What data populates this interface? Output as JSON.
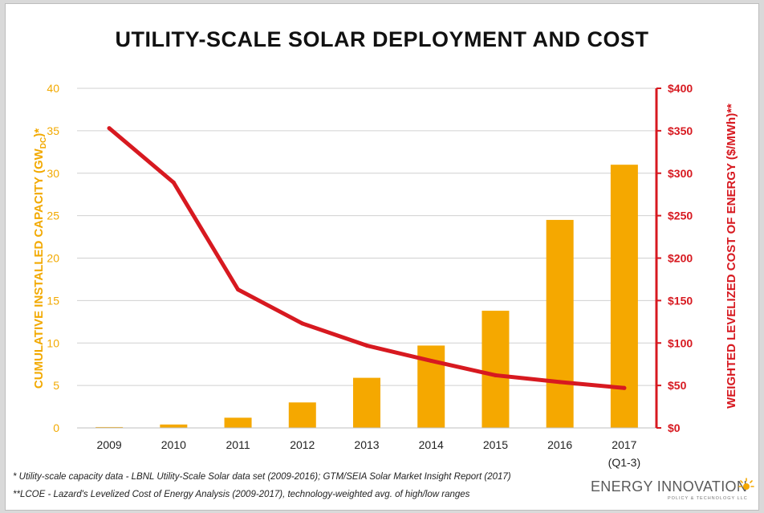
{
  "title": "UTILITY-SCALE SOLAR DEPLOYMENT AND COST",
  "chart_data": {
    "type": "bar",
    "title": "UTILITY-SCALE SOLAR DEPLOYMENT AND COST",
    "categories": [
      "2009",
      "2010",
      "2011",
      "2012",
      "2013",
      "2014",
      "2015",
      "2016",
      "2017"
    ],
    "category_sublabels": [
      "",
      "",
      "",
      "",
      "",
      "",
      "",
      "",
      "(Q1-3)"
    ],
    "series": [
      {
        "name": "Cumulative installed capacity",
        "type": "bar",
        "axis": "left",
        "color": "#f5a800",
        "values": [
          0.1,
          0.4,
          1.2,
          3.0,
          5.9,
          9.7,
          13.8,
          24.5,
          31.0
        ]
      },
      {
        "name": "Weighted levelized cost of energy",
        "type": "line",
        "axis": "right",
        "color": "#d71920",
        "values": [
          353,
          289,
          163,
          123,
          97,
          79,
          62,
          54,
          47
        ]
      }
    ],
    "ylabel_left": "CUMULATIVE INSTALLED CAPACITY (GW",
    "ylabel_left_sub": "DC",
    "ylabel_left_suffix": ")*",
    "ylabel_right": "WEIGHTED LEVELIZED COST OF ENERGY ($/MWh)**",
    "ylim_left": [
      0,
      40
    ],
    "yticks_left": [
      0,
      5,
      10,
      15,
      20,
      25,
      30,
      35,
      40
    ],
    "ylim_right": [
      0,
      400
    ],
    "yticks_right": [
      "$0",
      "$50",
      "$100",
      "$150",
      "$200",
      "$250",
      "$300",
      "$350",
      "$400"
    ],
    "grid": true
  },
  "footnotes": {
    "note1": "* Utility-scale capacity data - LBNL Utility-Scale Solar data set (2009-2016); GTM/SEIA Solar Market Insight Report (2017)",
    "note2": "**LCOE - Lazard's Levelized Cost of Energy Analysis (2009-2017), technology-weighted avg. of high/low ranges"
  },
  "logo": {
    "name": "ENERGY INNOVATION",
    "subtitle": "POLICY & TECHNOLOGY LLC"
  }
}
